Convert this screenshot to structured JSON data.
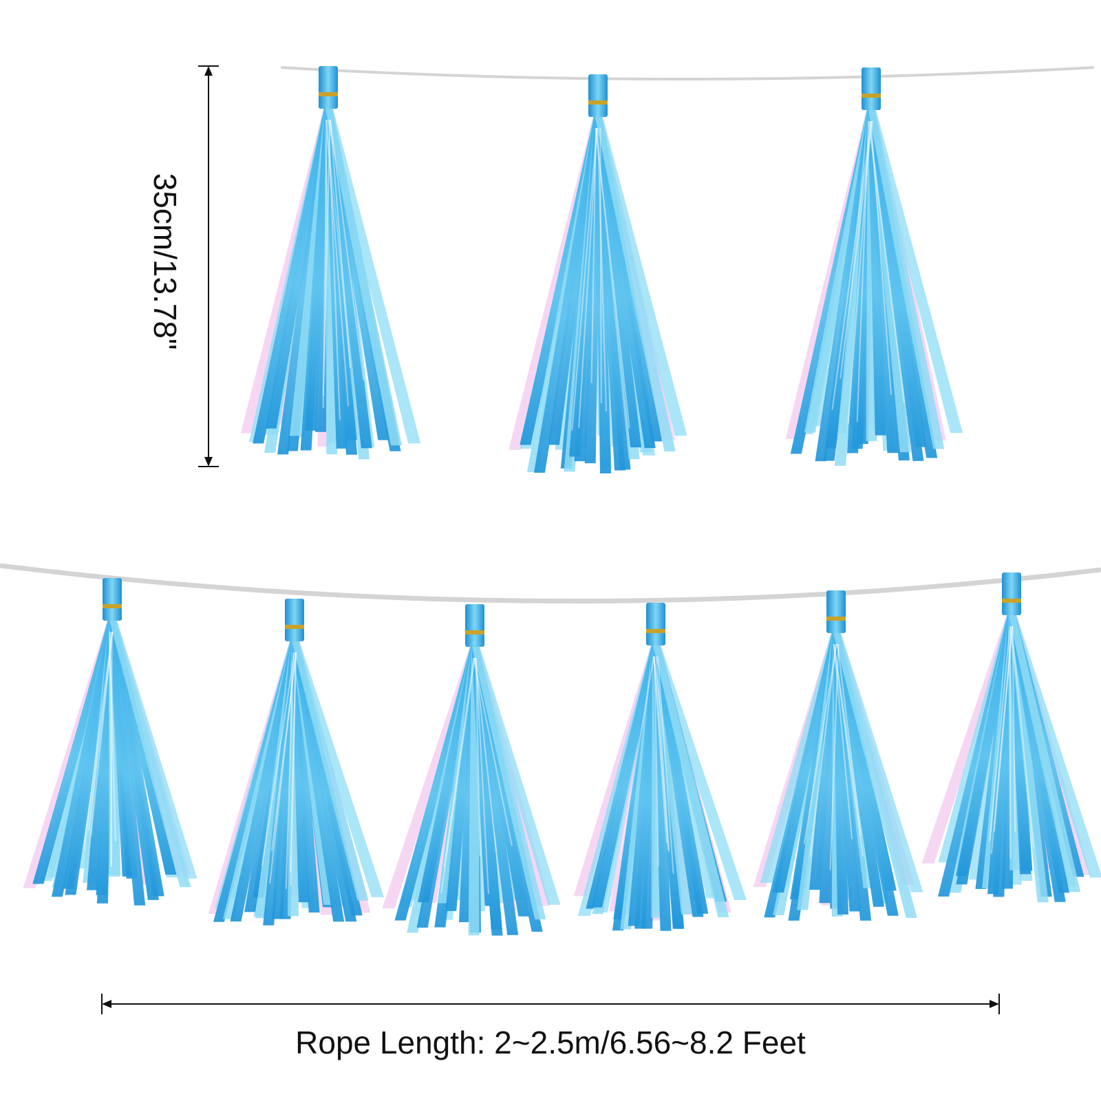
{
  "dimensions": {
    "height_label": "35cm/13.78\"",
    "rope_length_label": "Rope Length: 2~2.5m/6.56~8.2 Feet"
  },
  "garlands": [
    {
      "row": "top",
      "tassel_count": 3
    },
    {
      "row": "bottom",
      "tassel_count": 6
    }
  ],
  "colors": {
    "background": "#ffffff",
    "rope": "#d4d4d4",
    "tassel_blue": "#2aa7e6",
    "tassel_light_blue": "#8fdcf5",
    "tassel_pink": "#f3c9ef",
    "tie_gold": "#c9a227",
    "dimension_line": "#111111"
  }
}
